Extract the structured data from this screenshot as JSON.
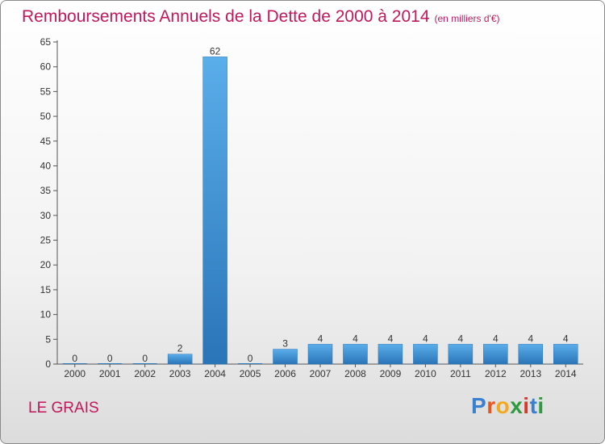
{
  "title": "Remboursements Annuels de la Dette de 2000 à 2014",
  "unit": "(en milliers d'€)",
  "commune": "LE GRAIS",
  "logo": {
    "letters": [
      "P",
      "r",
      "o",
      "x",
      "i",
      "t",
      "i"
    ],
    "colors": [
      "#3b7fd1",
      "#e8571e",
      "#f2a91d",
      "#2e9b3e",
      "#d6382b",
      "#3b7fd1",
      "#2e9b3e"
    ]
  },
  "colors": {
    "bar": "#3d8fd8",
    "bar_light": "#5aaeea",
    "bar_dark": "#2a74b8",
    "title": "#c2185b"
  },
  "chart_data": {
    "type": "bar",
    "title": "Remboursements Annuels de la Dette de 2000 à 2014",
    "categories": [
      "2000",
      "2001",
      "2002",
      "2003",
      "2004",
      "2005",
      "2006",
      "2007",
      "2008",
      "2009",
      "2010",
      "2011",
      "2012",
      "2013",
      "2014"
    ],
    "values": [
      0,
      0,
      0,
      2,
      62,
      0,
      3,
      4,
      4,
      4,
      4,
      4,
      4,
      4,
      4
    ],
    "data_labels": [
      "0",
      "0",
      "0",
      "2",
      "62",
      "0",
      "3",
      "4",
      "4",
      "4",
      "4",
      "4",
      "4",
      "4",
      "4"
    ],
    "ylim": [
      0,
      65
    ],
    "yticks": [
      0,
      5,
      10,
      15,
      20,
      25,
      30,
      35,
      40,
      45,
      50,
      55,
      60,
      65
    ],
    "grid": false,
    "legend": "none"
  }
}
